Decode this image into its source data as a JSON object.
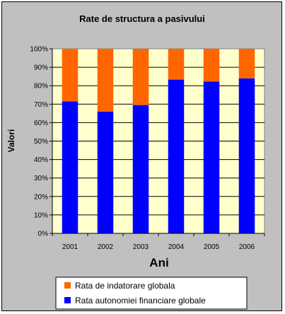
{
  "chart_data": {
    "type": "bar",
    "stacked": true,
    "percent": true,
    "title": "Rate de structura a pasivului",
    "xlabel": "Ani",
    "ylabel": "Valori",
    "categories": [
      "2001",
      "2002",
      "2003",
      "2004",
      "2005",
      "2006"
    ],
    "y_ticks": [
      "0%",
      "10%",
      "20%",
      "30%",
      "40%",
      "50%",
      "60%",
      "70%",
      "80%",
      "90%",
      "100%"
    ],
    "ylim": [
      0,
      100
    ],
    "grid": true,
    "legend_position": "bottom",
    "series": [
      {
        "name": "Rata autonomiei financiare globale",
        "color": "#0000ff",
        "values": [
          71.5,
          66,
          69.5,
          83.3,
          82.3,
          84
        ]
      },
      {
        "name": "Rata de indatorare globala",
        "color": "#ff6600",
        "values": [
          28.5,
          34,
          30.5,
          16.7,
          17.7,
          16
        ]
      }
    ],
    "plot_background": "#ffffcc",
    "chart_background": "#c0c0c0"
  }
}
